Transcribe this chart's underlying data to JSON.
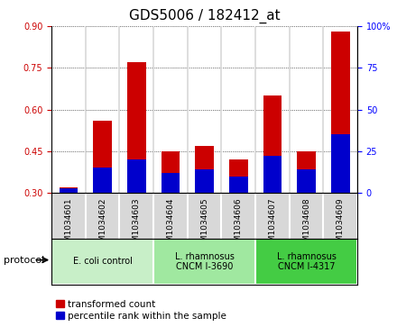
{
  "title": "GDS5006 / 182412_at",
  "samples": [
    "GSM1034601",
    "GSM1034602",
    "GSM1034603",
    "GSM1034604",
    "GSM1034605",
    "GSM1034606",
    "GSM1034607",
    "GSM1034608",
    "GSM1034609"
  ],
  "transformed_count": [
    0.32,
    0.56,
    0.77,
    0.45,
    0.47,
    0.42,
    0.65,
    0.45,
    0.88
  ],
  "percentile_rank": [
    3,
    15,
    20,
    12,
    14,
    10,
    22,
    14,
    35
  ],
  "ylim_left": [
    0.3,
    0.9
  ],
  "ylim_right": [
    0,
    100
  ],
  "yticks_left": [
    0.3,
    0.45,
    0.6,
    0.75,
    0.9
  ],
  "yticks_right": [
    0,
    25,
    50,
    75,
    100
  ],
  "bar_bottom": 0.3,
  "percentile_scale": 0.006,
  "groups": [
    {
      "label": "E. coli control",
      "start": 0,
      "end": 3,
      "color": "#c8efc8"
    },
    {
      "label": "L. rhamnosus\nCNCM I-3690",
      "start": 3,
      "end": 6,
      "color": "#a0e8a0"
    },
    {
      "label": "L. rhamnosus\nCNCM I-4317",
      "start": 6,
      "end": 9,
      "color": "#44cc44"
    }
  ],
  "red_color": "#cc0000",
  "blue_color": "#0000cc",
  "bar_width": 0.55,
  "title_fontsize": 11,
  "tick_fontsize": 7,
  "label_fontsize": 8,
  "legend_fontsize": 7.5,
  "protocol_label": "protocol",
  "legend_items": [
    "transformed count",
    "percentile rank within the sample"
  ],
  "sample_bg_color": "#d8d8d8"
}
